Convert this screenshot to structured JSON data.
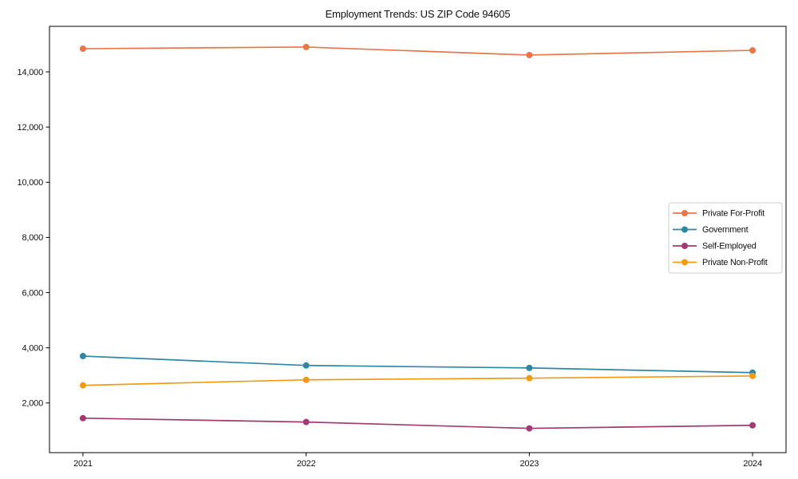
{
  "chart_data": {
    "type": "line",
    "title": "Employment Trends: US ZIP Code 94605",
    "xlabel": "",
    "ylabel": "",
    "x": [
      2021,
      2022,
      2023,
      2024
    ],
    "x_tick_labels": [
      "2021",
      "2022",
      "2023",
      "2024"
    ],
    "y_ticks": [
      2000,
      4000,
      6000,
      8000,
      10000,
      12000,
      14000
    ],
    "y_tick_labels": [
      "2,000",
      "4,000",
      "6,000",
      "8,000",
      "10,000",
      "12,000",
      "14,000"
    ],
    "xlim": [
      2020.85,
      2024.15
    ],
    "ylim": [
      200,
      15650
    ],
    "grid": false,
    "legend_position": "center right",
    "series": [
      {
        "name": "Private For-Profit",
        "color": "#E8764B",
        "values": [
          14840,
          14900,
          14610,
          14780
        ]
      },
      {
        "name": "Government",
        "color": "#2E87A3",
        "values": [
          3700,
          3360,
          3270,
          3100
        ]
      },
      {
        "name": "Self-Employed",
        "color": "#A23B72",
        "values": [
          1450,
          1310,
          1080,
          1190
        ]
      },
      {
        "name": "Private Non-Profit",
        "color": "#F09B13",
        "values": [
          2640,
          2840,
          2900,
          2980
        ]
      }
    ],
    "style": {
      "background": "#ffffff",
      "axis_color": "#000000",
      "legend_border_color": "#cccccc",
      "legend_background": "#ffffff"
    }
  }
}
